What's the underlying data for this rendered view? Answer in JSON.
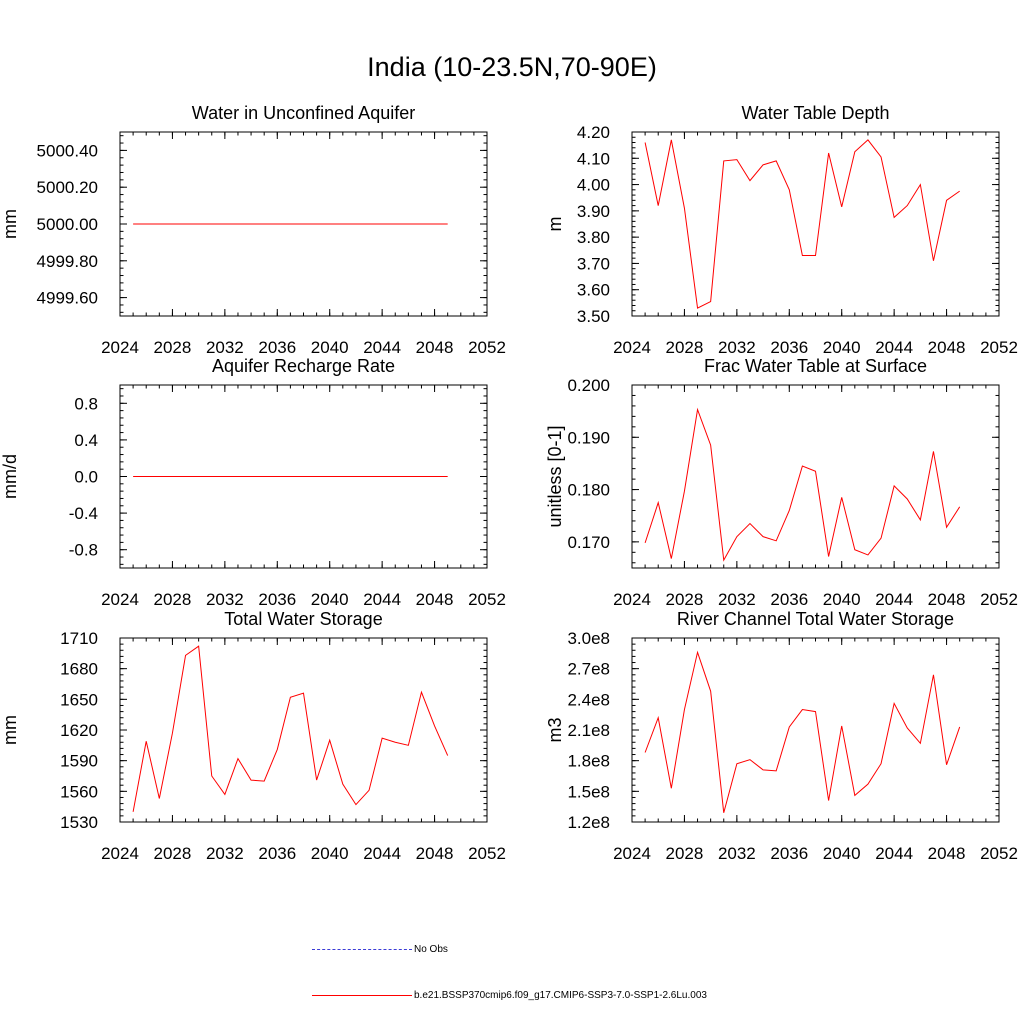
{
  "page": {
    "title": "India (10-23.5N,70-90E)"
  },
  "legend": [
    {
      "label": "No Obs",
      "color": "#3b3bd6",
      "style": "dashed"
    },
    {
      "label": "b.e21.BSSP370cmip6.f09_g17.CMIP6-SSP3-7.0-SSP1-2.6Lu.003",
      "color": "#ff0000",
      "style": "solid"
    }
  ],
  "chart_data": [
    {
      "type": "line",
      "title": "Water in Unconfined Aquifer",
      "xlabel": "",
      "ylabel": "mm",
      "xlim": [
        2024,
        2052
      ],
      "ylim": [
        4999.5,
        5000.5
      ],
      "xticks": [
        2024,
        2028,
        2032,
        2036,
        2040,
        2044,
        2048,
        2052
      ],
      "xtick_labels": [
        "2024",
        "2028",
        "2032",
        "2036",
        "2040",
        "2044",
        "2048",
        "2052"
      ],
      "yticks": [
        4999.6,
        4999.8,
        5000.0,
        5000.2,
        5000.4
      ],
      "ytick_labels": [
        "4999.60",
        "4999.80",
        "5000.00",
        "5000.20",
        "5000.40"
      ],
      "series": [
        {
          "color": "#ff0000",
          "x": [
            2025,
            2026,
            2027,
            2028,
            2029,
            2030,
            2031,
            2032,
            2033,
            2034,
            2035,
            2036,
            2037,
            2038,
            2039,
            2040,
            2041,
            2042,
            2043,
            2044,
            2045,
            2046,
            2047,
            2048,
            2049
          ],
          "values": [
            5000,
            5000,
            5000,
            5000,
            5000,
            5000,
            5000,
            5000,
            5000,
            5000,
            5000,
            5000,
            5000,
            5000,
            5000,
            5000,
            5000,
            5000,
            5000,
            5000,
            5000,
            5000,
            5000,
            5000,
            5000
          ]
        }
      ]
    },
    {
      "type": "line",
      "title": "Water Table Depth",
      "xlabel": "",
      "ylabel": "m",
      "xlim": [
        2024,
        2052
      ],
      "ylim": [
        3.5,
        4.2
      ],
      "xticks": [
        2024,
        2028,
        2032,
        2036,
        2040,
        2044,
        2048,
        2052
      ],
      "xtick_labels": [
        "2024",
        "2028",
        "2032",
        "2036",
        "2040",
        "2044",
        "2048",
        "2052"
      ],
      "yticks": [
        3.5,
        3.6,
        3.7,
        3.8,
        3.9,
        4.0,
        4.1,
        4.2
      ],
      "ytick_labels": [
        "3.50",
        "3.60",
        "3.70",
        "3.80",
        "3.90",
        "4.00",
        "4.10",
        "4.20"
      ],
      "series": [
        {
          "color": "#ff0000",
          "x": [
            2025,
            2026,
            2027,
            2028,
            2029,
            2030,
            2031,
            2032,
            2033,
            2034,
            2035,
            2036,
            2037,
            2038,
            2039,
            2040,
            2041,
            2042,
            2043,
            2044,
            2045,
            2046,
            2047,
            2048,
            2049
          ],
          "values": [
            4.16,
            3.92,
            4.17,
            3.91,
            3.53,
            3.555,
            4.09,
            4.095,
            4.015,
            4.075,
            4.09,
            3.98,
            3.73,
            3.73,
            4.12,
            3.915,
            4.125,
            4.17,
            4.105,
            3.875,
            3.92,
            4.0,
            3.71,
            3.94,
            3.975
          ]
        }
      ]
    },
    {
      "type": "line",
      "title": "Aquifer Recharge Rate",
      "xlabel": "",
      "ylabel": "mm/d",
      "xlim": [
        2024,
        2052
      ],
      "ylim": [
        -1.0,
        1.0
      ],
      "xticks": [
        2024,
        2028,
        2032,
        2036,
        2040,
        2044,
        2048,
        2052
      ],
      "xtick_labels": [
        "2024",
        "2028",
        "2032",
        "2036",
        "2040",
        "2044",
        "2048",
        "2052"
      ],
      "yticks": [
        -0.8,
        -0.4,
        0.0,
        0.4,
        0.8
      ],
      "ytick_labels": [
        "-0.8",
        "-0.4",
        "0.0",
        "0.4",
        "0.8"
      ],
      "series": [
        {
          "color": "#ff0000",
          "x": [
            2025,
            2026,
            2027,
            2028,
            2029,
            2030,
            2031,
            2032,
            2033,
            2034,
            2035,
            2036,
            2037,
            2038,
            2039,
            2040,
            2041,
            2042,
            2043,
            2044,
            2045,
            2046,
            2047,
            2048,
            2049
          ],
          "values": [
            0,
            0,
            0,
            0,
            0,
            0,
            0,
            0,
            0,
            0,
            0,
            0,
            0,
            0,
            0,
            0,
            0,
            0,
            0,
            0,
            0,
            0,
            0,
            0,
            0
          ]
        }
      ]
    },
    {
      "type": "line",
      "title": "Frac Water Table at Surface",
      "xlabel": "",
      "ylabel": "unitless [0-1]",
      "xlim": [
        2024,
        2052
      ],
      "ylim": [
        0.165,
        0.2
      ],
      "xticks": [
        2024,
        2028,
        2032,
        2036,
        2040,
        2044,
        2048,
        2052
      ],
      "xtick_labels": [
        "2024",
        "2028",
        "2032",
        "2036",
        "2040",
        "2044",
        "2048",
        "2052"
      ],
      "yticks": [
        0.17,
        0.18,
        0.19,
        0.2
      ],
      "ytick_labels": [
        "0.170",
        "0.180",
        "0.190",
        "0.200"
      ],
      "series": [
        {
          "color": "#ff0000",
          "x": [
            2025,
            2026,
            2027,
            2028,
            2029,
            2030,
            2031,
            2032,
            2033,
            2034,
            2035,
            2036,
            2037,
            2038,
            2039,
            2040,
            2041,
            2042,
            2043,
            2044,
            2045,
            2046,
            2047,
            2048,
            2049
          ],
          "values": [
            0.1698,
            0.1775,
            0.1668,
            0.1797,
            0.1953,
            0.1885,
            0.1665,
            0.171,
            0.1735,
            0.171,
            0.1702,
            0.176,
            0.1845,
            0.1835,
            0.1672,
            0.1785,
            0.1685,
            0.1675,
            0.1707,
            0.1807,
            0.1782,
            0.1742,
            0.1873,
            0.1728,
            0.1767
          ]
        }
      ]
    },
    {
      "type": "line",
      "title": "Total Water Storage",
      "xlabel": "",
      "ylabel": "mm",
      "xlim": [
        2024,
        2052
      ],
      "ylim": [
        1530,
        1710
      ],
      "xticks": [
        2024,
        2028,
        2032,
        2036,
        2040,
        2044,
        2048,
        2052
      ],
      "xtick_labels": [
        "2024",
        "2028",
        "2032",
        "2036",
        "2040",
        "2044",
        "2048",
        "2052"
      ],
      "yticks": [
        1530,
        1560,
        1590,
        1620,
        1650,
        1680,
        1710
      ],
      "ytick_labels": [
        "1530",
        "1560",
        "1590",
        "1620",
        "1650",
        "1680",
        "1710"
      ],
      "series": [
        {
          "color": "#ff0000",
          "x": [
            2025,
            2026,
            2027,
            2028,
            2029,
            2030,
            2031,
            2032,
            2033,
            2034,
            2035,
            2036,
            2037,
            2038,
            2039,
            2040,
            2041,
            2042,
            2043,
            2044,
            2045,
            2046,
            2047,
            2048,
            2049
          ],
          "values": [
            1540,
            1609,
            1553,
            1617,
            1693,
            1702,
            1575,
            1557,
            1592,
            1571,
            1570,
            1601,
            1652,
            1656,
            1571,
            1610,
            1567,
            1547,
            1561,
            1612,
            1608,
            1605,
            1657,
            1624,
            1595
          ]
        }
      ]
    },
    {
      "type": "line",
      "title": "River Channel Total Water Storage",
      "xlabel": "",
      "ylabel": "m3",
      "xlim": [
        2024,
        2052
      ],
      "ylim": [
        120000000,
        300000000
      ],
      "xticks": [
        2024,
        2028,
        2032,
        2036,
        2040,
        2044,
        2048,
        2052
      ],
      "xtick_labels": [
        "2024",
        "2028",
        "2032",
        "2036",
        "2040",
        "2044",
        "2048",
        "2052"
      ],
      "yticks": [
        120000000,
        150000000,
        180000000,
        210000000,
        240000000,
        270000000,
        300000000
      ],
      "ytick_labels": [
        "1.2e8",
        "1.5e8",
        "1.8e8",
        "2.1e8",
        "2.4e8",
        "2.7e8",
        "3.0e8"
      ],
      "series": [
        {
          "color": "#ff0000",
          "x": [
            2025,
            2026,
            2027,
            2028,
            2029,
            2030,
            2031,
            2032,
            2033,
            2034,
            2035,
            2036,
            2037,
            2038,
            2039,
            2040,
            2041,
            2042,
            2043,
            2044,
            2045,
            2046,
            2047,
            2048,
            2049
          ],
          "values": [
            188000000,
            222000000,
            153000000,
            230000000,
            286000000,
            248000000,
            129000000,
            177000000,
            181000000,
            171000000,
            170000000,
            213000000,
            230000000,
            228000000,
            141000000,
            214000000,
            146000000,
            157000000,
            177000000,
            236000000,
            212000000,
            197000000,
            264000000,
            176000000,
            213000000
          ]
        }
      ]
    }
  ]
}
